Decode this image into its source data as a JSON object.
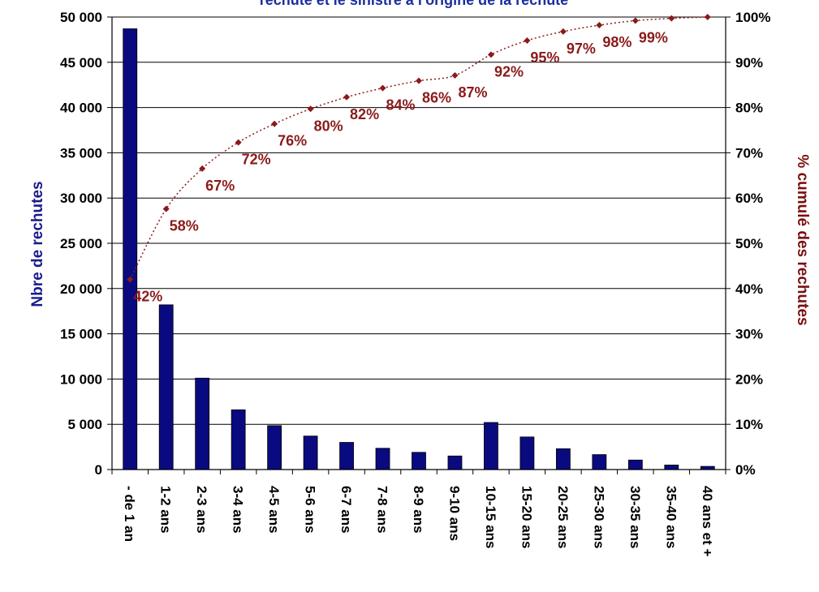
{
  "chart_data": {
    "type": "bar",
    "title": "rechute et le sinistre à l'origine de la rechute",
    "ylabel": "Nbre de rechutes",
    "y2label": "% cumulé des rechutes",
    "categories": [
      "- de 1 an",
      "1-2 ans",
      "2-3 ans",
      "3-4 ans",
      "4-5 ans",
      "5-6 ans",
      "6-7 ans",
      "7-8 ans",
      "8-9 ans",
      "9-10 ans",
      "10-15 ans",
      "15-20 ans",
      "20-25 ans",
      "25-30 ans",
      "30-35 ans",
      "35-40 ans",
      "40 ans et +"
    ],
    "ylim": [
      0,
      50000
    ],
    "yticks": [
      0,
      5000,
      10000,
      15000,
      20000,
      25000,
      30000,
      35000,
      40000,
      45000,
      50000
    ],
    "ytick_labels": [
      "0",
      "5 000",
      "10 000",
      "15 000",
      "20 000",
      "25 000",
      "30 000",
      "35 000",
      "40 000",
      "45 000",
      "50 000"
    ],
    "y2lim": [
      0,
      100
    ],
    "y2ticks": [
      0,
      10,
      20,
      30,
      40,
      50,
      60,
      70,
      80,
      90,
      100
    ],
    "y2tick_labels": [
      "0%",
      "10%",
      "20%",
      "30%",
      "40%",
      "50%",
      "60%",
      "70%",
      "80%",
      "90%",
      "100%"
    ],
    "grid": true,
    "series": [
      {
        "type": "bar",
        "color": "#0a0a80",
        "values": [
          48700,
          18200,
          10100,
          6600,
          4850,
          3700,
          3000,
          2350,
          1900,
          1500,
          5200,
          3600,
          2300,
          1650,
          1050,
          500,
          350
        ]
      },
      {
        "type": "line",
        "color": "#8b1a1a",
        "values": [
          42,
          57.6,
          66.5,
          72.3,
          76.4,
          79.7,
          82.3,
          84.3,
          85.9,
          87.1,
          91.7,
          94.8,
          96.8,
          98.2,
          99.2,
          99.7,
          100
        ],
        "labels": [
          "42%",
          "58%",
          "67%",
          "72%",
          "76%",
          "80%",
          "82%",
          "84%",
          "86%",
          "87%",
          "92%",
          "95%",
          "97%",
          "98%",
          "99%",
          "",
          ""
        ]
      }
    ]
  }
}
